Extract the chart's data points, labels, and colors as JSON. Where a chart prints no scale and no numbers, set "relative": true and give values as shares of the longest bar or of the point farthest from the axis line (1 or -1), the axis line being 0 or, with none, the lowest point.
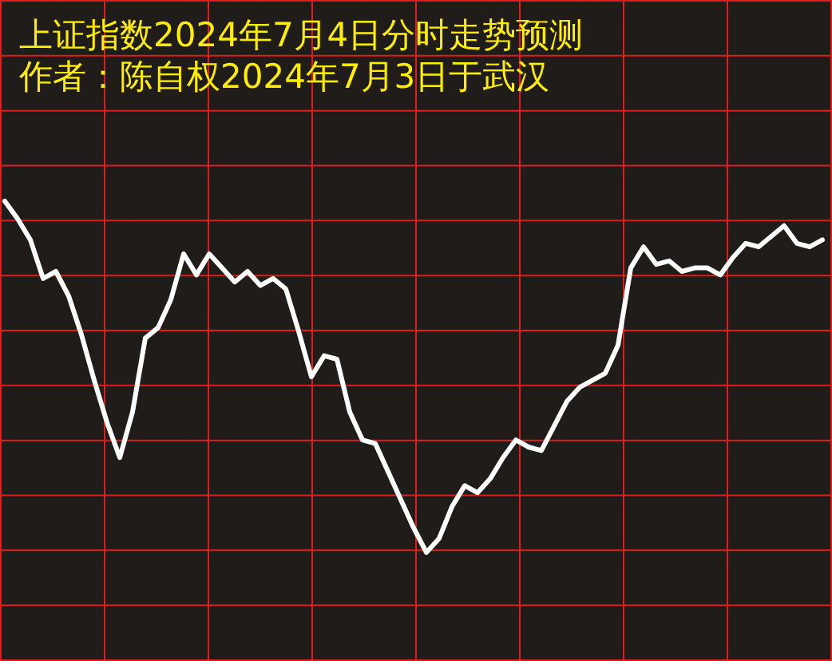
{
  "chart_data": {
    "type": "line",
    "title": "上证指数2024年7月4日分时走势预测",
    "subtitle": "作者：陈自权2024年7月3日于武汉",
    "relative": true,
    "grid": true,
    "line_style": "solid",
    "categories": [
      null,
      null,
      null,
      null,
      null,
      null,
      null,
      null,
      null,
      null,
      null,
      null,
      null,
      null,
      null,
      null,
      null,
      null,
      null,
      null,
      null,
      null,
      null,
      null,
      null,
      null,
      null,
      null,
      null,
      null,
      null,
      null,
      null,
      null,
      null,
      null,
      null,
      null,
      null,
      null,
      null,
      null,
      null,
      null,
      null,
      null,
      null,
      null,
      null,
      null,
      null,
      null,
      null,
      null,
      null,
      null,
      null,
      null,
      null,
      null,
      null,
      null,
      null,
      null,
      null
    ],
    "series": [
      {
        "color": "#ffffff",
        "values": [
          1,
          0.95,
          0.89,
          0.78,
          0.8,
          0.73,
          0.62,
          0.49,
          0.37,
          0.27,
          0.4,
          0.61,
          0.64,
          0.72,
          0.85,
          0.79,
          0.85,
          0.81,
          0.77,
          0.8,
          0.76,
          0.78,
          0.75,
          0.63,
          0.5,
          0.56,
          0.55,
          0.4,
          0.32,
          0.31,
          0.23,
          0.15,
          0.07,
          0,
          0.04,
          0.13,
          0.19,
          0.17,
          0.21,
          0.27,
          0.32,
          0.3,
          0.29,
          0.36,
          0.43,
          0.47,
          0.49,
          0.51,
          0.59,
          0.81,
          0.87,
          0.82,
          0.83,
          0.8,
          0.81,
          0.81,
          0.79,
          0.84,
          0.88,
          0.87,
          0.9,
          0.93,
          0.88,
          0.87,
          0.89
        ]
      }
    ]
  }
}
